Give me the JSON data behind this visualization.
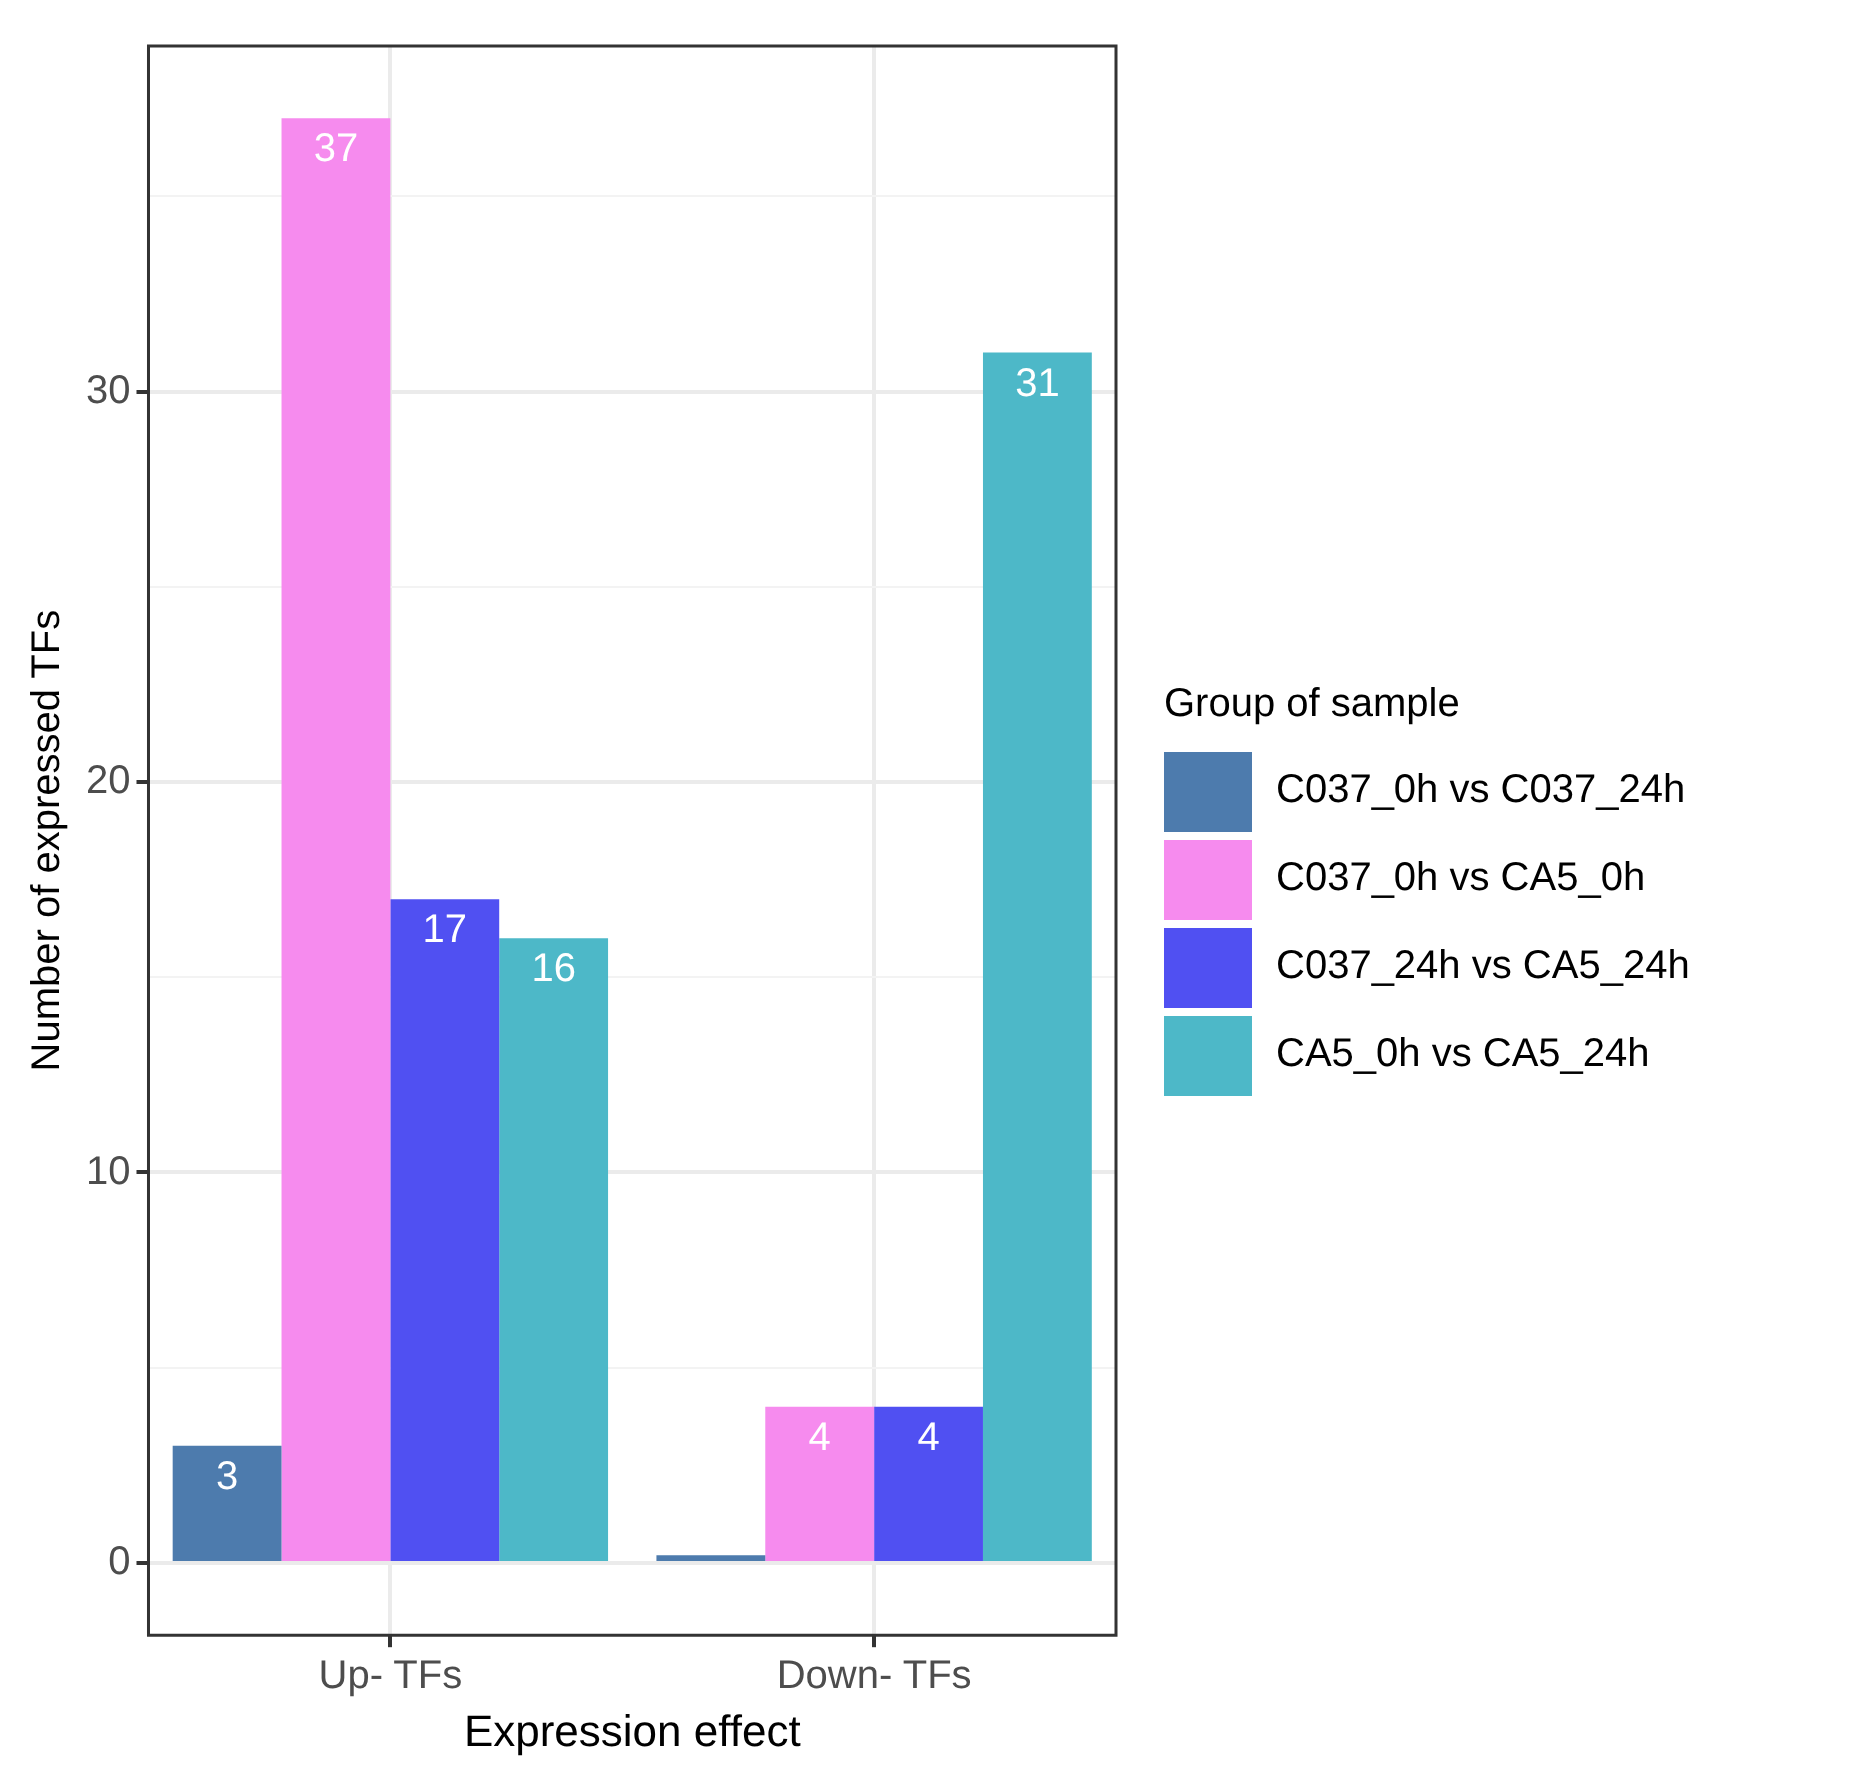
{
  "chart_data": {
    "type": "bar",
    "xlabel": "Expression effect",
    "ylabel": "Number of expressed TFs",
    "legend_title": "Group of sample",
    "legend": "right",
    "categories": [
      "Up- TFs",
      "Down- TFs"
    ],
    "series": [
      {
        "name": "C037_0h vs C037_24h",
        "color": "#4d7bad",
        "values": [
          3,
          0.2
        ],
        "value_labels": [
          "3",
          null
        ]
      },
      {
        "name": "C037_0h vs CA5_0h",
        "color": "#f68bee",
        "values": [
          37,
          4
        ],
        "value_labels": [
          "37",
          "4"
        ]
      },
      {
        "name": "C037_24h vs CA5_24h",
        "color": "#5050f2",
        "values": [
          17,
          4
        ],
        "value_labels": [
          "17",
          "4"
        ]
      },
      {
        "name": "CA5_0h vs CA5_24h",
        "color": "#4db8c8",
        "values": [
          16,
          31
        ],
        "value_labels": [
          "16",
          "31"
        ]
      }
    ],
    "ylim": [
      -1.85,
      38.85
    ],
    "yticks": [
      0,
      {
        "value": 5,
        "label": null
      },
      10,
      {
        "value": 15,
        "label": null
      },
      20,
      {
        "value": 25,
        "label": null
      },
      30,
      {
        "value": 35,
        "label": null
      }
    ],
    "grid": true
  }
}
